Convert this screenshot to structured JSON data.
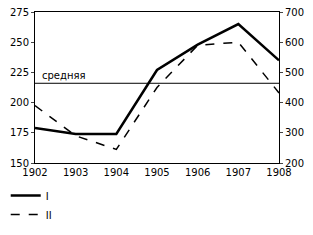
{
  "chart_data": {
    "type": "line",
    "categories": [
      "1902",
      "1903",
      "1904",
      "1905",
      "1906",
      "1907",
      "1908"
    ],
    "series": [
      {
        "name": "I",
        "color": "#000000",
        "line_style": "solid",
        "values": [
          179,
          174,
          174,
          227,
          248,
          265,
          235
        ]
      },
      {
        "name": "II",
        "color": "#000000",
        "line_style": "dash",
        "axis": "y2",
        "values": [
          390,
          290,
          245,
          450,
          590,
          600,
          432
        ]
      }
    ],
    "ylim": [
      150,
      275
    ],
    "yticks": [
      150,
      175,
      200,
      225,
      250,
      275
    ],
    "y2lim": [
      200,
      700
    ],
    "y2ticks": [
      200,
      300,
      400,
      500,
      600,
      700
    ],
    "annotations": [
      {
        "text": "средняя",
        "y": 216
      }
    ],
    "grid": false,
    "legend": "bottom left"
  }
}
